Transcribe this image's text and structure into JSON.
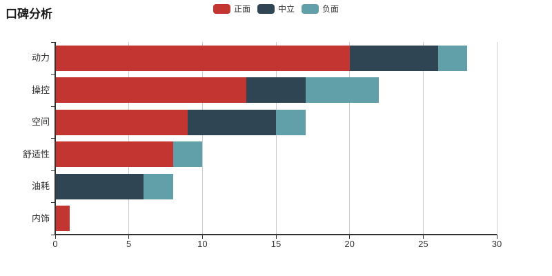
{
  "title": "口碑分析",
  "colors": {
    "background": "#ffffff",
    "axis_line": "#333333",
    "grid_line": "#cccccc",
    "text": "#333333",
    "positive": "#c23531",
    "neutral": "#2f4554",
    "negative": "#61a0a8"
  },
  "legend": {
    "items": [
      {
        "label": "正面",
        "color": "#c23531"
      },
      {
        "label": "中立",
        "color": "#2f4554"
      },
      {
        "label": "负面",
        "color": "#61a0a8"
      }
    ]
  },
  "chart_data": {
    "type": "bar",
    "orientation": "horizontal",
    "stacked": true,
    "title": "口碑分析",
    "categories": [
      "动力",
      "操控",
      "空间",
      "舒适性",
      "油耗",
      "内饰"
    ],
    "series": [
      {
        "name": "正面",
        "color": "#c23531",
        "values": [
          20,
          13,
          9,
          8,
          0,
          1
        ]
      },
      {
        "name": "中立",
        "color": "#2f4554",
        "values": [
          6,
          4,
          6,
          0,
          6,
          0
        ]
      },
      {
        "name": "负面",
        "color": "#61a0a8",
        "values": [
          2,
          5,
          2,
          2,
          2,
          0
        ]
      }
    ],
    "totals": [
      28,
      22,
      17,
      10,
      8,
      1
    ],
    "xlim": [
      0,
      30
    ],
    "x_ticks": [
      0,
      5,
      10,
      15,
      20,
      25,
      30
    ],
    "ylabel": "",
    "xlabel": "",
    "grid": "vertical-only",
    "legend_position": "top-center"
  }
}
